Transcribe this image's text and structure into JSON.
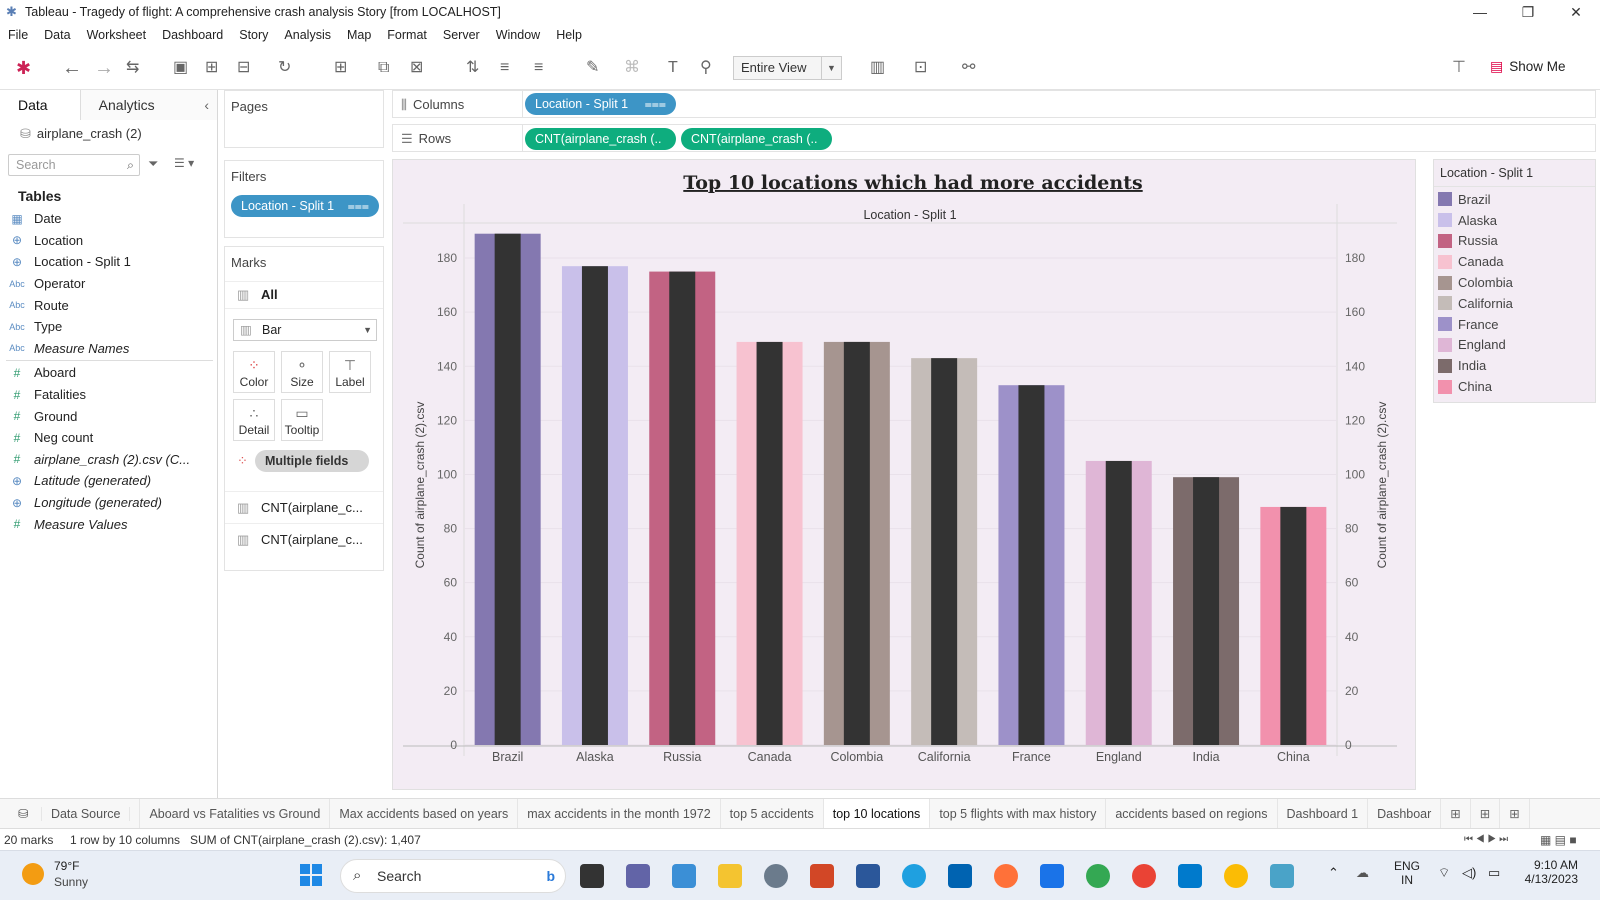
{
  "window": {
    "title": "Tableau - Tragedy of flight: A comprehensive crash analysis Story [from LOCALHOST]",
    "min": "—",
    "max": "❐",
    "close": "✕"
  },
  "menu": [
    "File",
    "Data",
    "Worksheet",
    "Dashboard",
    "Story",
    "Analysis",
    "Map",
    "Format",
    "Server",
    "Window",
    "Help"
  ],
  "toolbar": {
    "fit": "Entire View",
    "show_me": "Show Me"
  },
  "left": {
    "tab_data": "Data",
    "tab_analytics": "Analytics",
    "datasource": "airplane_crash (2)",
    "search_placeholder": "Search",
    "tables_label": "Tables",
    "fields": [
      {
        "icon": "▦",
        "name": "Date",
        "style": "date"
      },
      {
        "icon": "⊕",
        "name": "Location",
        "style": "geo"
      },
      {
        "icon": "⊕",
        "name": "Location - Split 1",
        "style": "geo"
      },
      {
        "icon": "Abc",
        "name": "Operator",
        "style": "dim"
      },
      {
        "icon": "Abc",
        "name": "Route",
        "style": "dim"
      },
      {
        "icon": "Abc",
        "name": "Type",
        "style": "dim"
      },
      {
        "icon": "Abc",
        "name": "Measure Names",
        "style": "dim-it"
      },
      {
        "icon": "#",
        "name": "Aboard",
        "style": "meas"
      },
      {
        "icon": "#",
        "name": "Fatalities",
        "style": "meas"
      },
      {
        "icon": "#",
        "name": "Ground",
        "style": "meas"
      },
      {
        "icon": "#",
        "name": "Neg count",
        "style": "meas"
      },
      {
        "icon": "#",
        "name": "airplane_crash (2).csv (C...",
        "style": "meas-it"
      },
      {
        "icon": "⊕",
        "name": "Latitude (generated)",
        "style": "geo-it"
      },
      {
        "icon": "⊕",
        "name": "Longitude (generated)",
        "style": "geo-it"
      },
      {
        "icon": "#",
        "name": "Measure Values",
        "style": "meas-it"
      }
    ]
  },
  "pages": {
    "label": "Pages"
  },
  "filters": {
    "label": "Filters",
    "pill": "Location - Split 1"
  },
  "marks": {
    "label": "Marks",
    "all": "All",
    "type": "Bar",
    "color": "Color",
    "size": "Size",
    "label_btn": "Label",
    "detail": "Detail",
    "tooltip": "Tooltip",
    "multiple": "Multiple fields",
    "m1": "CNT(airplane_c...",
    "m2": "CNT(airplane_c..."
  },
  "shelves": {
    "columns_label": "Columns",
    "columns_pill": "Location - Split 1",
    "rows_label": "Rows",
    "rows_pill1": "CNT(airplane_crash (..",
    "rows_pill2": "CNT(airplane_crash (.."
  },
  "chart_data": {
    "type": "bar",
    "title": "Top 10 locations which had more accidents",
    "header": "Location - Split 1",
    "ylabel": "Count of airplane_crash (2).csv",
    "ylim": [
      0,
      190
    ],
    "ticks": [
      0,
      20,
      40,
      60,
      80,
      100,
      120,
      140,
      160,
      180
    ],
    "categories": [
      "Brazil",
      "Alaska",
      "Russia",
      "Canada",
      "Colombia",
      "California",
      "France",
      "England",
      "India",
      "China"
    ],
    "values": [
      189,
      177,
      175,
      149,
      149,
      143,
      133,
      105,
      99,
      88
    ],
    "colors": [
      "#8478b0",
      "#c9c0ea",
      "#c26383",
      "#f7c2d0",
      "#a69590",
      "#c4bcb8",
      "#9d91c9",
      "#dfb6d6",
      "#7c6b6b",
      "#f291ad"
    ],
    "inner_bar_color": "#333333"
  },
  "legend": {
    "title": "Location - Split 1"
  },
  "sheets": {
    "datasource": "Data Source",
    "tabs": [
      "Aboard vs Fatalities vs Ground",
      "Max accidents based on years",
      "max accidents in the month 1972",
      "top 5 accidents",
      "top 10 locations",
      "top 5 flights with max history",
      "accidents based on regions",
      "Dashboard 1",
      "Dashboar"
    ],
    "current": 4
  },
  "status": {
    "marks": "20 marks",
    "grid": "1 row by 10 columns",
    "sum": "SUM of CNT(airplane_crash (2).csv): 1,407"
  },
  "taskbar": {
    "temp": "79°F",
    "weather": "Sunny",
    "search": "Search",
    "lang1": "ENG",
    "lang2": "IN",
    "time": "9:10 AM",
    "date": "4/13/2023"
  }
}
